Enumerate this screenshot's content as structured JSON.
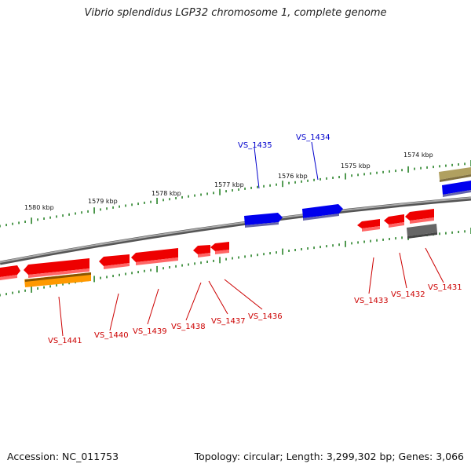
{
  "title": "Vibrio splendidus LGP32 chromosome 1, complete genome",
  "accession": "Accession: NC_011753",
  "summary": "Topology: circular; Length: 3,299,302 bp; Genes: 3,066",
  "colors": {
    "forward_gene": "#0000ee",
    "reverse_gene": "#ee0000",
    "rna_gene": "#ff9900",
    "pseudo_gene": "#666666",
    "other_gene": "#b0a060",
    "backbone": "#888888",
    "tick": "#1a7a1a",
    "forward_label": "#0000cc",
    "reverse_label": "#cc0000"
  },
  "kbp_ticks": [
    "1580 kbp",
    "1579 kbp",
    "1578 kbp",
    "1577 kbp",
    "1576 kbp",
    "1575 kbp",
    "1574 kbp"
  ],
  "forward_labels": [
    "VS_1435",
    "VS_1434"
  ],
  "reverse_labels": [
    "VS_1441",
    "VS_1440",
    "VS_1439",
    "VS_1438",
    "VS_1437",
    "VS_1436",
    "VS_1433",
    "VS_1432",
    "VS_1431"
  ]
}
